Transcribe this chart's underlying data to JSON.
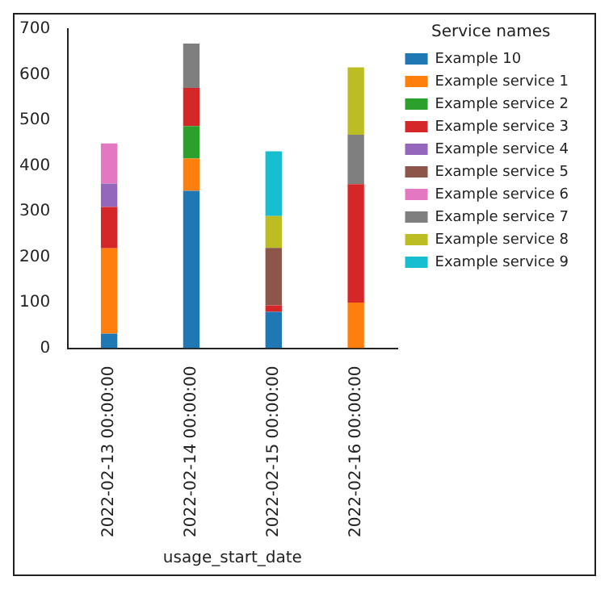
{
  "chart_data": {
    "type": "bar",
    "stacked": true,
    "xlabel": "usage_start_date",
    "legend_title": "Service names",
    "legend": "right",
    "categories": [
      "2022-02-13 00:00:00",
      "2022-02-14 00:00:00",
      "2022-02-15 00:00:00",
      "2022-02-16 00:00:00"
    ],
    "ylim": [
      0,
      700
    ],
    "yticks": [
      0,
      100,
      200,
      300,
      400,
      500,
      600,
      700
    ],
    "grid": false,
    "series": [
      {
        "name": "Example 10",
        "color": "#1f77b4",
        "values": [
          32,
          345,
          80,
          null
        ]
      },
      {
        "name": "Example service 1",
        "color": "#ff7f0e",
        "values": [
          187,
          71,
          null,
          100
        ]
      },
      {
        "name": "Example service 2",
        "color": "#2ca02c",
        "values": [
          null,
          71,
          null,
          null
        ]
      },
      {
        "name": "Example service 3",
        "color": "#d62728",
        "values": [
          91,
          84,
          14,
          260
        ]
      },
      {
        "name": "Example service 4",
        "color": "#9467bd",
        "values": [
          51,
          null,
          null,
          null
        ]
      },
      {
        "name": "Example service 5",
        "color": "#8c564b",
        "values": [
          null,
          null,
          126,
          null
        ]
      },
      {
        "name": "Example service 6",
        "color": "#e377c2",
        "values": [
          88,
          null,
          null,
          null
        ]
      },
      {
        "name": "Example service 7",
        "color": "#7f7f7f",
        "values": [
          null,
          97,
          null,
          108
        ]
      },
      {
        "name": "Example service 8",
        "color": "#bcbd22",
        "values": [
          null,
          null,
          70,
          148
        ]
      },
      {
        "name": "Example service 9",
        "color": "#17becf",
        "values": [
          null,
          null,
          142,
          null
        ]
      }
    ]
  }
}
